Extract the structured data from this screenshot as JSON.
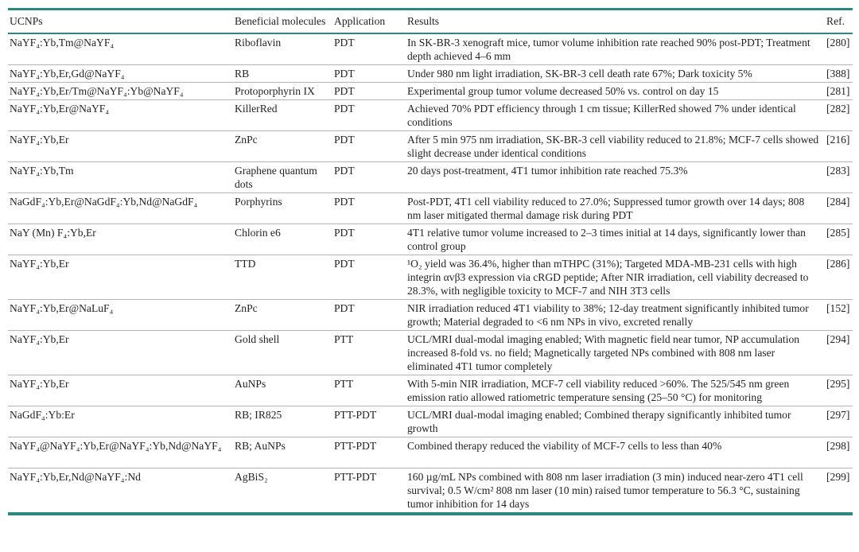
{
  "theme": {
    "accent_teal": "#2a8a80",
    "row_divider": "#b3b3b8",
    "text_color": "#232323",
    "background": "#ffffff"
  },
  "table": {
    "headers": [
      "UCNPs",
      "Beneficial molecules",
      "Application",
      "Results",
      "Ref."
    ],
    "rows": [
      {
        "ucnp": "NaYF₄:Yb,Tm@NaYF₄",
        "molecule": "Riboflavin",
        "application": "PDT",
        "result": "In SK-BR-3 xenograft mice, tumor volume inhibition rate reached 90% post-PDT; Treatment depth achieved 4–6 mm",
        "ref": "[280]"
      },
      {
        "ucnp": "NaYF₄:Yb,Er,Gd@NaYF₄",
        "molecule": "RB",
        "application": "PDT",
        "result": "Under 980 nm light irradiation, SK-BR-3 cell death rate 67%; Dark toxicity 5%",
        "ref": "[388]"
      },
      {
        "ucnp": "NaYF₄:Yb,Er/Tm@NaYF₄:Yb@NaYF₄",
        "molecule": "Protoporphyrin IX",
        "application": "PDT",
        "result": "Experimental group tumor volume decreased 50% vs. control on day 15",
        "ref": "[281]"
      },
      {
        "ucnp": "NaYF₄:Yb,Er@NaYF₄",
        "molecule": "KillerRed",
        "application": "PDT",
        "result": "Achieved 70% PDT efficiency through 1 cm tissue; KillerRed showed 7% under identical conditions",
        "ref": "[282]"
      },
      {
        "ucnp": "NaYF₄:Yb,Er",
        "molecule": "ZnPc",
        "application": "PDT",
        "result": "After 5 min 975 nm irradiation, SK-BR-3 cell viability reduced to 21.8%; MCF-7 cells showed slight decrease under identical conditions",
        "ref": "[216]"
      },
      {
        "ucnp": "NaYF₄:Yb,Tm",
        "molecule": "Graphene quantum dots",
        "application": "PDT",
        "result": "20 days post-treatment, 4T1 tumor inhibition rate reached 75.3%",
        "ref": "[283]"
      },
      {
        "ucnp": "NaGdF₄:Yb,Er@NaGdF₄:Yb,Nd@NaGdF₄",
        "molecule": "Porphyrins",
        "application": "PDT",
        "result": "Post-PDT, 4T1 cell viability reduced to 27.0%; Suppressed tumor growth over 14 days; 808 nm laser mitigated thermal damage risk during PDT",
        "ref": "[284]"
      },
      {
        "ucnp": "NaY (Mn) F₄:Yb,Er",
        "molecule": "Chlorin e6",
        "application": "PDT",
        "result": "4T1 relative tumor volume increased to 2–3 times initial at 14 days, significantly lower than control group",
        "ref": "[285]"
      },
      {
        "ucnp": "NaYF₄:Yb,Er",
        "molecule": "TTD",
        "application": "PDT",
        "result": "¹O₂ yield was 36.4%, higher than mTHPC (31%); Targeted MDA-MB-231 cells with high integrin αvβ3 expression via cRGD peptide; After NIR irradiation, cell viability decreased to 28.3%, with negligible toxicity to MCF-7 and NIH 3T3 cells",
        "ref": "[286]"
      },
      {
        "ucnp": "NaYF₄:Yb,Er@NaLuF₄",
        "molecule": "ZnPc",
        "application": "PDT",
        "result": "NIR irradiation reduced 4T1 viability to 38%; 12-day treatment significantly inhibited tumor growth; Material degraded to <6 nm NPs in vivo, excreted renally",
        "ref": "[152]"
      },
      {
        "ucnp": "NaYF₄:Yb,Er",
        "molecule": "Gold shell",
        "application": "PTT",
        "result": "UCL/MRI dual-modal imaging enabled; With magnetic field near tumor, NP accumulation increased 8-fold vs. no field; Magnetically targeted NPs combined with 808 nm laser eliminated 4T1 tumor completely",
        "ref": "[294]"
      },
      {
        "ucnp": "NaYF₄:Yb,Er",
        "molecule": "AuNPs",
        "application": "PTT",
        "result": "With 5-min NIR irradiation, MCF-7 cell viability reduced >60%. The 525/545 nm green emission ratio allowed ratiometric temperature sensing (25–50 °C) for monitoring",
        "ref": "[295]"
      },
      {
        "ucnp": "NaGdF₄:Yb:Er",
        "molecule": "RB; IR825",
        "application": "PTT-PDT",
        "result": "UCL/MRI dual-modal imaging enabled; Combined therapy significantly inhibited tumor growth",
        "ref": "[297]"
      },
      {
        "ucnp": "NaYF₄@NaYF₄:Yb,Er@NaYF₄:Yb,Nd@NaYF₄",
        "molecule": "RB; AuNPs",
        "application": "PTT-PDT",
        "result": "Combined therapy reduced the viability of MCF-7 cells to less than 40%",
        "ref": "[298]"
      },
      {
        "ucnp": "NaYF₄:Yb,Er,Nd@NaYF₄:Nd",
        "molecule": "AgBiS₂",
        "application": "PTT-PDT",
        "result": "160 µg/mL NPs combined with 808 nm laser irradiation (3 min) induced near-zero 4T1 cell survival; 0.5 W/cm² 808 nm laser (10 min) raised tumor temperature to 56.3 °C, sustaining tumor inhibition for 14 days",
        "ref": "[299]"
      }
    ]
  }
}
